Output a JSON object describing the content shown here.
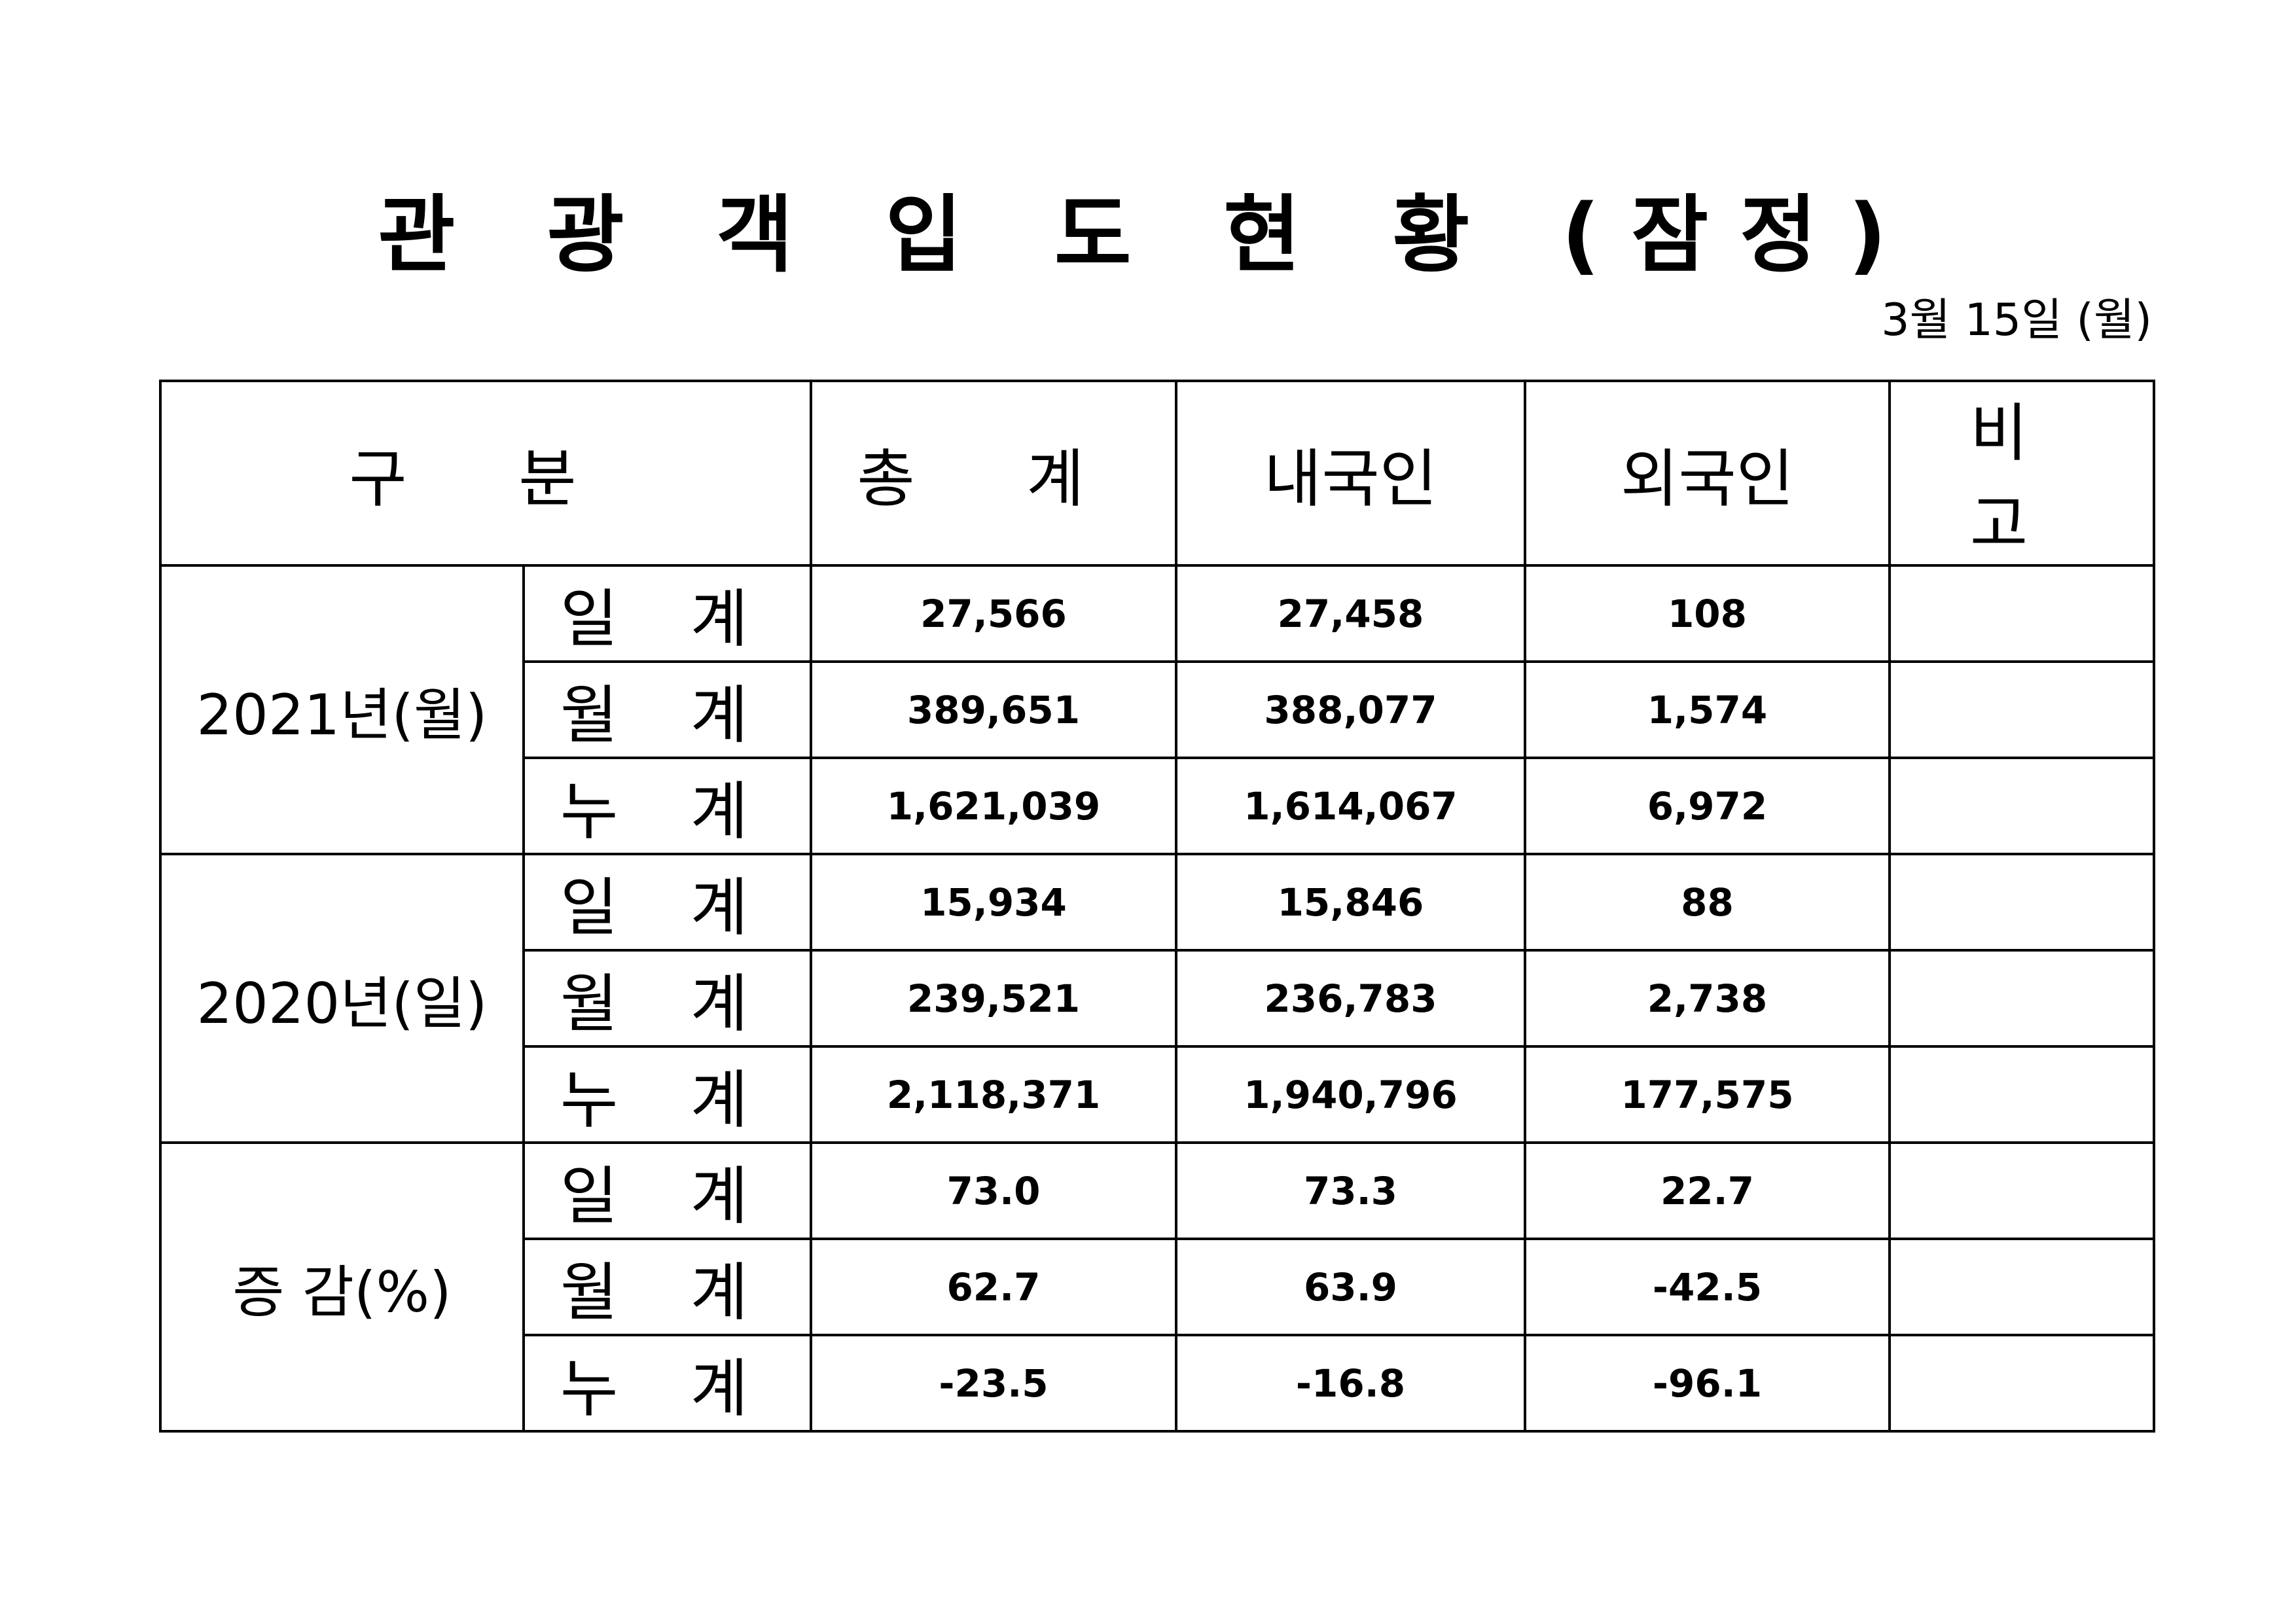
{
  "title": "관 광 객 입 도 현 황 (잠정)",
  "date": "3월 15일 (월)",
  "headers": [
    "구 분",
    "총 계",
    "내국인",
    "외국인",
    "비 고"
  ],
  "groups": [
    {
      "label": "2021년(월)",
      "rows": [
        {
          "sub": "일 계",
          "total": "27,566",
          "domestic": "27,458",
          "foreign": "108",
          "note": ""
        },
        {
          "sub": "월 계",
          "total": "389,651",
          "domestic": "388,077",
          "foreign": "1,574",
          "note": ""
        },
        {
          "sub": "누 계",
          "total": "1,621,039",
          "domestic": "1,614,067",
          "foreign": "6,972",
          "note": ""
        }
      ]
    },
    {
      "label": "2020년(일)",
      "rows": [
        {
          "sub": "일 계",
          "total": "15,934",
          "domestic": "15,846",
          "foreign": "88",
          "note": ""
        },
        {
          "sub": "월 계",
          "total": "239,521",
          "domestic": "236,783",
          "foreign": "2,738",
          "note": ""
        },
        {
          "sub": "누 계",
          "total": "2,118,371",
          "domestic": "1,940,796",
          "foreign": "177,575",
          "note": ""
        }
      ]
    },
    {
      "label": "증 감(%)",
      "rows": [
        {
          "sub": "일 계",
          "total": "73.0",
          "domestic": "73.3",
          "foreign": "22.7",
          "note": ""
        },
        {
          "sub": "월 계",
          "total": "62.7",
          "domestic": "63.9",
          "foreign": "-42.5",
          "note": ""
        },
        {
          "sub": "누 계",
          "total": "-23.5",
          "domestic": "-16.8",
          "foreign": "-96.1",
          "note": ""
        }
      ]
    }
  ]
}
